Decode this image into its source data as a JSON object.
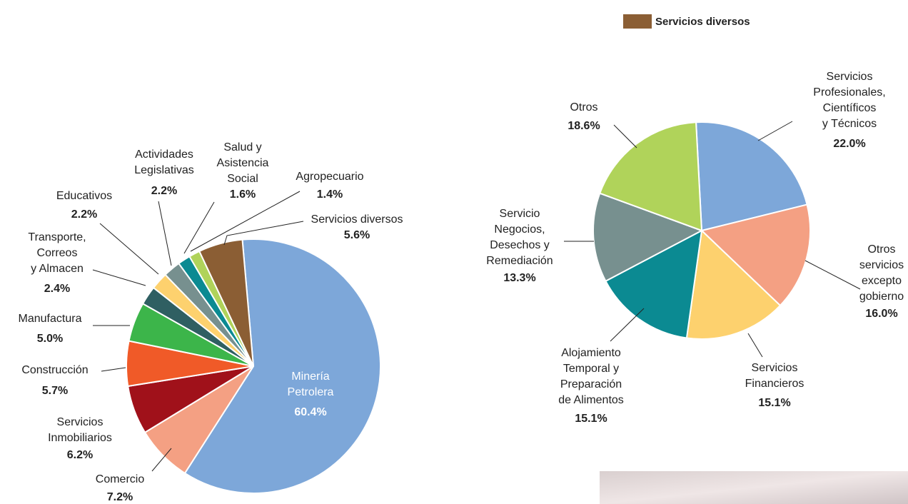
{
  "chart_data": [
    {
      "type": "pie",
      "categories": [
        "Minería\nPetrolera",
        "Comercio",
        "Servicios\nInmobiliarios",
        "Construcción",
        "Manufactura",
        "Transporte,\nCorreos\ny Almacen",
        "Educativos",
        "Actividades\nLegislativas",
        "Salud y\nAsistencia\nSocial",
        "Agropecuario",
        "Servicios diversos"
      ],
      "values": [
        60.4,
        7.2,
        6.2,
        5.7,
        5.0,
        2.4,
        2.2,
        2.2,
        1.6,
        1.4,
        5.6
      ],
      "value_labels": [
        "60.4%",
        "7.2%",
        "6.2%",
        "5.7%",
        "5.0%",
        "2.4%",
        "2.2%",
        "2.2%",
        "1.6%",
        "1.4%",
        "5.6%"
      ],
      "colors": [
        "#7da7d9",
        "#f4a083",
        "#a0111a",
        "#f05a28",
        "#3cb54a",
        "#2f5f62",
        "#fdd16e",
        "#77908f",
        "#0b8a92",
        "#b0d35a",
        "#8b5e34"
      ]
    },
    {
      "type": "pie",
      "legend": {
        "name": "Servicios diversos",
        "color": "#8b5e34"
      },
      "categories": [
        "Servicios\nProfesionales,\nCientíficos\ny Técnicos",
        "Otros\nservicios\nexcepto\ngobierno",
        "Servicios\nFinancieros",
        "Alojamiento\nTemporal y\nPreparación\nde Alimentos",
        "Servicio\nNegocios,\nDesechos y\nRemediación",
        "Otros"
      ],
      "values": [
        22.0,
        16.0,
        15.1,
        15.1,
        13.3,
        18.6
      ],
      "value_labels": [
        "22.0%",
        "16.0%",
        "15.1%",
        "15.1%",
        "13.3%",
        "18.6%"
      ],
      "colors": [
        "#7da7d9",
        "#f4a083",
        "#fdd16e",
        "#0b8a92",
        "#77908f",
        "#b0d35a"
      ]
    }
  ]
}
